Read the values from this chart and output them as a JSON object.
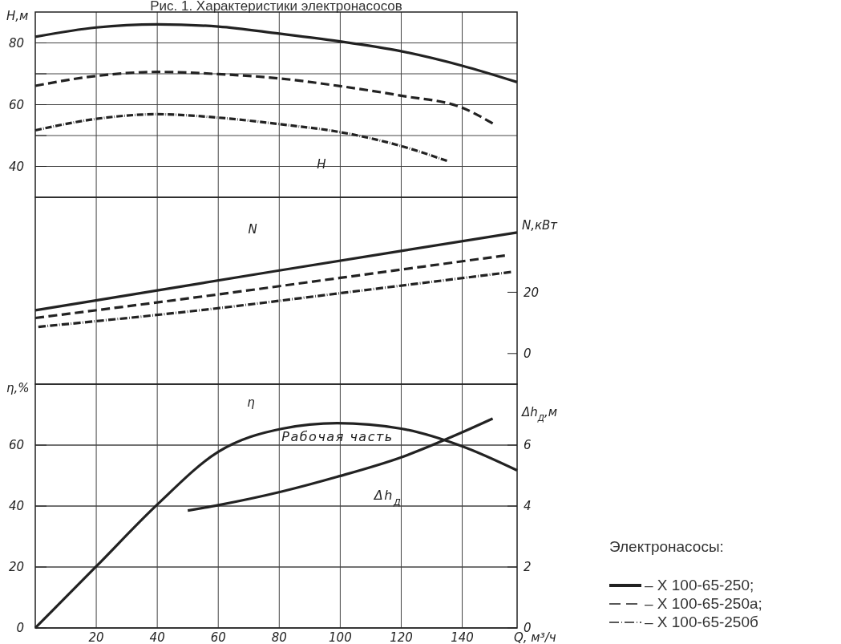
{
  "chart_data": [
    {
      "type": "line",
      "title": "Рис. 1. Характеристики электронасосов",
      "ylabel": "H,м",
      "xlim": [
        0,
        158
      ],
      "xticks": [
        20,
        40,
        60,
        80,
        100,
        120,
        140
      ],
      "ylim": [
        30,
        90
      ],
      "yticks": [
        40,
        {
          "value": 50,
          "label": null
        },
        60,
        {
          "value": 70,
          "label": null
        },
        80
      ],
      "grid": true,
      "tick_labels": "y",
      "legend": "right",
      "legend_title": "Электронасосы:",
      "annotations": [
        "H"
      ],
      "series": [
        {
          "name": "– Х 100-65-250;",
          "color": "#222222",
          "line_style": "solid",
          "x": [
            0,
            20,
            40,
            60,
            80,
            99,
            120,
            140,
            158
          ],
          "values": [
            82,
            85,
            86,
            85.3,
            83,
            80.6,
            77.3,
            72.6,
            67.3
          ]
        },
        {
          "name": "– Х 100-65-250а;",
          "color": "#222222",
          "line_style": "dashed",
          "x": [
            0,
            20,
            40,
            60,
            80,
            100,
            120,
            140,
            150
          ],
          "values": [
            66.1,
            69.3,
            70.6,
            69.9,
            68.5,
            66,
            62.9,
            59,
            53.9
          ]
        },
        {
          "name": "– Х 100-65-250б",
          "color": "#222222",
          "line_style": "dotted",
          "x": [
            0,
            20,
            40,
            60,
            80,
            100,
            120,
            135
          ],
          "values": [
            51.7,
            55.4,
            56.9,
            55.8,
            53.7,
            51.1,
            46.6,
            41.8
          ]
        }
      ]
    },
    {
      "type": "line",
      "y2label": "N,кВт",
      "xlim": [
        0,
        158
      ],
      "xticks": [
        20,
        40,
        60,
        80,
        100,
        120,
        140
      ],
      "y2lim": [
        -10,
        51
      ],
      "y2ticks": [
        0,
        20
      ],
      "grid": "x",
      "tick_labels": "y",
      "annotations": [
        "N"
      ],
      "series": [
        {
          "color": "#222222",
          "line_style": "solid",
          "axis": "y2",
          "x": [
            0,
            40,
            80,
            120,
            158
          ],
          "values": [
            14.1,
            20.6,
            27.1,
            33.5,
            39.5
          ]
        },
        {
          "color": "#222222",
          "line_style": "dashed",
          "axis": "y2",
          "x": [
            0,
            60,
            100,
            154
          ],
          "values": [
            11.6,
            19.3,
            24.7,
            32
          ]
        },
        {
          "color": "#222222",
          "line_style": "dotted",
          "axis": "y2",
          "x": [
            1,
            60,
            100,
            156
          ],
          "values": [
            8.7,
            14.8,
            19.7,
            26.6
          ]
        }
      ]
    },
    {
      "type": "line",
      "ylabel": "η,%",
      "y2label": "Δh$_{Д}$,м",
      "xlabel": "Q, м³/ч",
      "xlim": [
        0,
        158
      ],
      "xticks": [
        20,
        40,
        60,
        80,
        100,
        120,
        140
      ],
      "ylim": [
        0,
        80
      ],
      "yticks": [
        0,
        20,
        40,
        60
      ],
      "y2lim": [
        0,
        8
      ],
      "y2ticks": [
        0,
        2,
        4,
        6
      ],
      "grid": true,
      "annotations": [
        "η",
        "Рабочая часть",
        "Δh$_{Д}$"
      ],
      "series": [
        {
          "color": "#222222",
          "line_style": "solid",
          "x": [
            0,
            20,
            40,
            60,
            81,
            99,
            120,
            140,
            158
          ],
          "values": [
            0,
            20.2,
            40.5,
            57.8,
            65.4,
            67.2,
            65.4,
            59.6,
            51.7
          ]
        },
        {
          "color": "#222222",
          "line_style": "solid",
          "axis": "y2",
          "x": [
            50,
            60,
            81,
            99,
            120,
            140,
            150
          ],
          "values": [
            3.85,
            4.03,
            4.48,
            4.96,
            5.6,
            6.42,
            6.87
          ]
        }
      ]
    }
  ]
}
